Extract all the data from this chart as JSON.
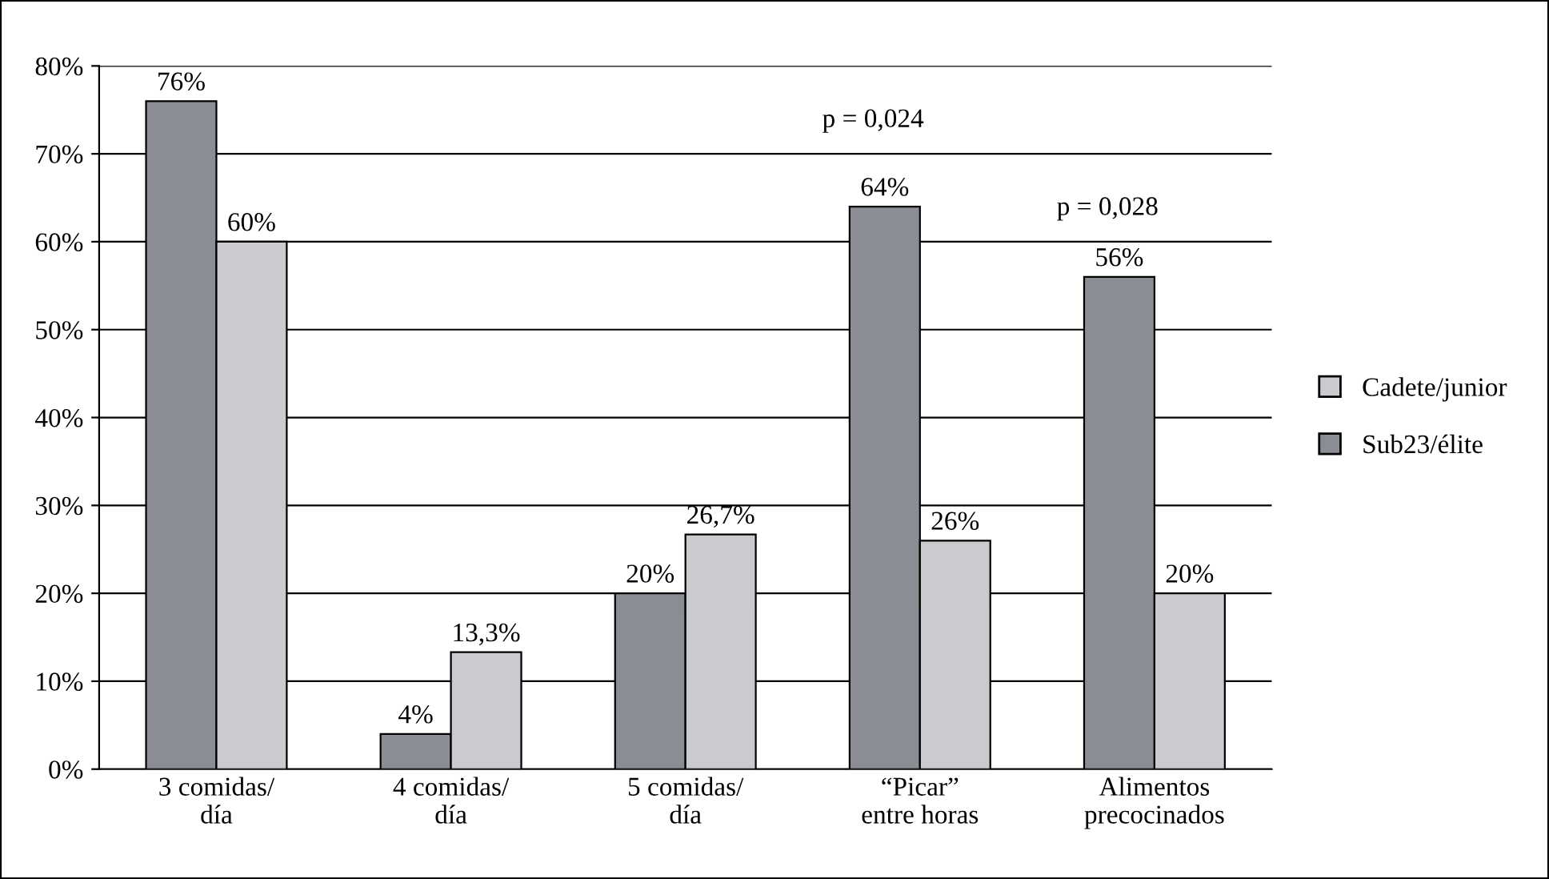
{
  "chart_data": {
    "type": "bar",
    "categories": [
      "3 comidas/\ndía",
      "4 comidas/\ndía",
      "5 comidas/\ndía",
      "“Picar”\nentre horas",
      "Alimentos\nprecocinados"
    ],
    "series": [
      {
        "name": "Sub23/élite",
        "color": "#8a8d93",
        "values": [
          76,
          4,
          20,
          64,
          56
        ],
        "value_labels": [
          "76%",
          "4%",
          "20%",
          "64%",
          "56%"
        ]
      },
      {
        "name": "Cadete/junior",
        "color": "#c9cbce",
        "values": [
          60,
          13.3,
          26.7,
          26,
          20
        ],
        "value_labels": [
          "60%",
          "13,3%",
          "26,7%",
          "26%",
          "20%"
        ]
      }
    ],
    "ylim": [
      0,
      80
    ],
    "yticks": [
      {
        "value": 0,
        "label": "0%"
      },
      {
        "value": 10,
        "label": "10%"
      },
      {
        "value": 20,
        "label": "20%"
      },
      {
        "value": 30,
        "label": "30%"
      },
      {
        "value": 40,
        "label": "40%"
      },
      {
        "value": 50,
        "label": "50%"
      },
      {
        "value": 60,
        "label": "60%"
      },
      {
        "value": 70,
        "label": "70%"
      },
      {
        "value": 80,
        "label": "80%"
      }
    ],
    "grid": "y",
    "legend": "right",
    "annotations": [
      "p = 0,024",
      "p = 0,028"
    ]
  }
}
